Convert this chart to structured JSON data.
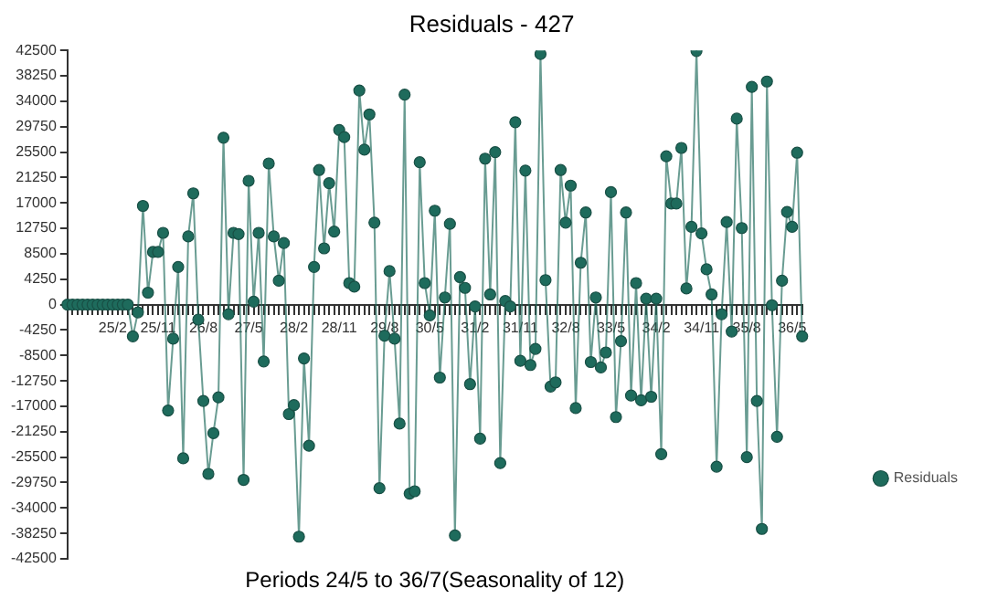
{
  "chart_data": {
    "type": "line",
    "title": "Residuals - 427",
    "xlabel": "Periods 24/5 to 36/7(Seasonality of 12)",
    "categories": [
      null,
      null,
      null,
      null,
      null,
      null,
      null,
      null,
      null,
      "25/2",
      null,
      null,
      null,
      null,
      null,
      null,
      null,
      null,
      "25/11",
      null,
      null,
      null,
      null,
      null,
      null,
      null,
      null,
      "26/8",
      null,
      null,
      null,
      null,
      null,
      null,
      null,
      null,
      "27/5",
      null,
      null,
      null,
      null,
      null,
      null,
      null,
      null,
      "28/2",
      null,
      null,
      null,
      null,
      null,
      null,
      null,
      null,
      "28/11",
      null,
      null,
      null,
      null,
      null,
      null,
      null,
      null,
      "29/8",
      null,
      null,
      null,
      null,
      null,
      null,
      null,
      null,
      "30/5",
      null,
      null,
      null,
      null,
      null,
      null,
      null,
      null,
      "31/2",
      null,
      null,
      null,
      null,
      null,
      null,
      null,
      null,
      "31/11",
      null,
      null,
      null,
      null,
      null,
      null,
      null,
      null,
      "32/8",
      null,
      null,
      null,
      null,
      null,
      null,
      null,
      null,
      "33/5",
      null,
      null,
      null,
      null,
      null,
      null,
      null,
      null,
      "34/2",
      null,
      null,
      null,
      null,
      null,
      null,
      null,
      null,
      "34/11",
      null,
      null,
      null,
      null,
      null,
      null,
      null,
      null,
      "35/8",
      null,
      null,
      null,
      null,
      null,
      null,
      null,
      null,
      "36/5",
      null,
      null
    ],
    "series": [
      {
        "name": "Residuals",
        "color": "#1e6b5c",
        "values": [
          0,
          0,
          0,
          0,
          0,
          0,
          0,
          0,
          0,
          0,
          0,
          0,
          0,
          -5300,
          -1300,
          16500,
          2000,
          8800,
          8800,
          12000,
          -17700,
          -5700,
          6300,
          -25700,
          11400,
          18600,
          -2500,
          -16100,
          -28300,
          -21500,
          -15500,
          27900,
          -1600,
          12000,
          11800,
          -29300,
          20700,
          500,
          12000,
          -9500,
          23600,
          11400,
          4000,
          10300,
          -18300,
          -16800,
          -38800,
          -9000,
          -23600,
          6300,
          22500,
          9400,
          20300,
          12200,
          29200,
          28000,
          3600,
          3000,
          35800,
          25900,
          31800,
          13700,
          -30700,
          -5200,
          5600,
          -5700,
          -19900,
          35100,
          -31600,
          -31200,
          23800,
          3600,
          -1800,
          15700,
          -12200,
          1200,
          13500,
          -38600,
          4600,
          2800,
          -13300,
          -300,
          -22400,
          24400,
          1700,
          25500,
          -26500,
          600,
          -300,
          30500,
          -9400,
          22400,
          -10100,
          -7400,
          41900,
          4100,
          -13700,
          -13000,
          22500,
          13700,
          19900,
          -17300,
          7000,
          15400,
          -9600,
          1200,
          -10500,
          -8000,
          18800,
          -18800,
          -6100,
          15400,
          -15200,
          3600,
          -16000,
          1000,
          -15400,
          1000,
          -25000,
          24800,
          16900,
          16900,
          26200,
          2700,
          13000,
          42400,
          11900,
          5900,
          1700,
          -27100,
          -1600,
          13800,
          -4500,
          31100,
          12800,
          -25500,
          36400,
          -16100,
          -37500,
          37300,
          -100,
          -22100,
          4000,
          15500,
          13000,
          25400,
          -5300
        ]
      }
    ],
    "ylim": [
      -42500,
      42500
    ],
    "yticks": [
      -42500,
      -38250,
      -34000,
      -29750,
      -25500,
      -21250,
      -17000,
      -12750,
      -8500,
      -4250,
      0,
      4250,
      8500,
      12750,
      17000,
      21250,
      25500,
      29750,
      34000,
      38250,
      42500
    ],
    "grid": false,
    "legend": "right",
    "marker": "circle",
    "line_style": "solid"
  }
}
